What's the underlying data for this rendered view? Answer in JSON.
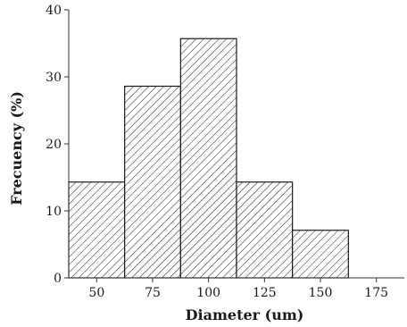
{
  "chart_data": {
    "type": "bar",
    "title": "",
    "xlabel": "Diameter (um)",
    "ylabel": "Frecuency (%)",
    "categories": [
      "50",
      "75",
      "100",
      "125",
      "150",
      "175"
    ],
    "values": [
      14.3,
      28.6,
      35.7,
      14.3,
      7.1,
      0
    ],
    "xlim": [
      37.5,
      187.5
    ],
    "ylim": [
      0,
      40
    ],
    "yticks": [
      0,
      10,
      20,
      30,
      40
    ],
    "xticks": [
      50,
      75,
      100,
      125,
      150,
      175
    ],
    "bin_width": 25,
    "grid": false,
    "legend": "none",
    "bar_fill": "diagonal-hatch",
    "colors": {
      "bar_edge": "#1a1a1a",
      "background": "#ffffff"
    }
  }
}
